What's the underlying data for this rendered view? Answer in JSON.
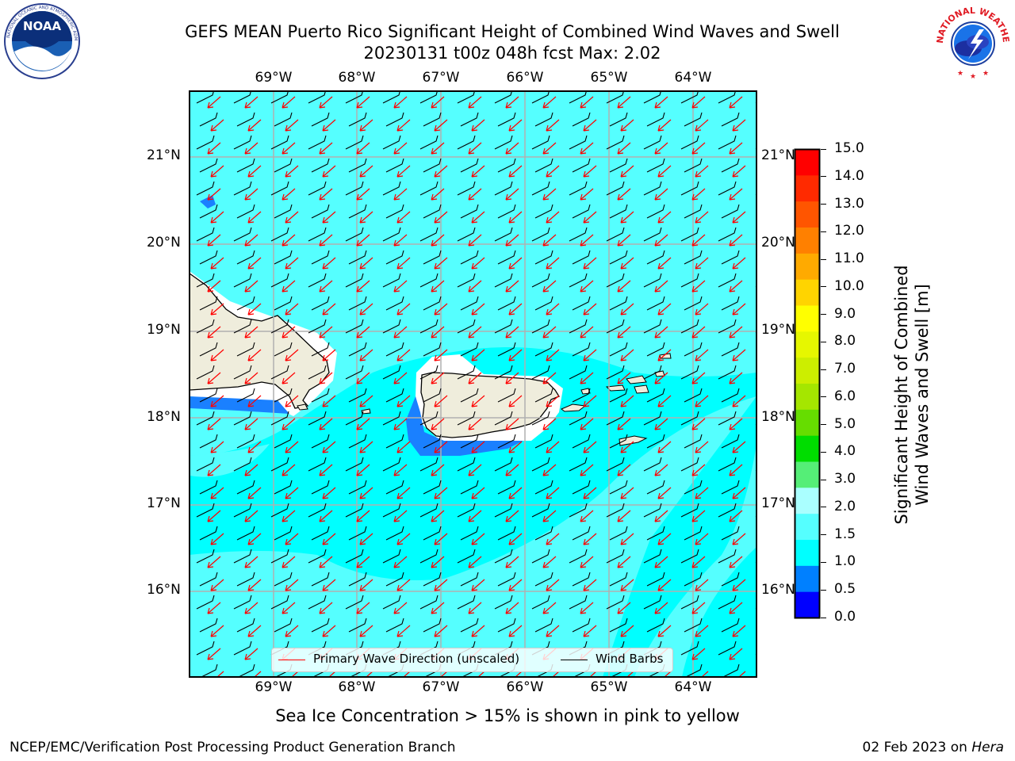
{
  "header": {
    "title_line1": "GEFS MEAN Puerto Rico Significant Height of Combined Wind Waves and Swell",
    "title_line2": "20230131 t00z 048h fcst   Max: 2.02"
  },
  "logos": {
    "left": {
      "icon": "noaa-logo",
      "text": "NOAA"
    },
    "right": {
      "icon": "nws-logo",
      "text": "NATIONAL WEATHER SERVICE"
    }
  },
  "map": {
    "lon_labels": [
      "69°W",
      "68°W",
      "67°W",
      "66°W",
      "65°W",
      "64°W"
    ],
    "lat_labels": [
      "21°N",
      "20°N",
      "19°N",
      "18°N",
      "17°N",
      "16°N"
    ],
    "ocean_color": "#00ffff",
    "land_color": "#efeddc",
    "arrow_color": "#ff0000",
    "barb_color": "#000000",
    "legend": {
      "wave_label": "Primary Wave Direction (unscaled)",
      "barb_label": "Wind Barbs"
    }
  },
  "colorbar": {
    "label_line1": "Significant Height of Combined",
    "label_line2": "Wind Waves and Swell [m]",
    "ticks": [
      "15.0",
      "14.0",
      "13.0",
      "12.0",
      "11.0",
      "10.0",
      "9.0",
      "8.0",
      "7.0",
      "6.0",
      "5.0",
      "4.0",
      "3.0",
      "2.0",
      "1.5",
      "1.0",
      "0.5",
      "0.0"
    ],
    "colors_top_to_bottom": [
      "#ff0000",
      "#ff2a00",
      "#ff5500",
      "#ff8000",
      "#ffaa00",
      "#ffd400",
      "#ffff00",
      "#e6f700",
      "#ccee00",
      "#a5e600",
      "#66dd00",
      "#00dd00",
      "#55ee77",
      "#aaffff",
      "#55ffff",
      "#00ffff",
      "#0080ff",
      "#0000ff"
    ]
  },
  "note": "Sea Ice Concentration > 15% is shown in pink to yellow",
  "footer": {
    "left": "NCEP/EMC/Verification Post Processing Product Generation Branch",
    "date": "02 Feb 2023 on ",
    "machine": "Hera"
  }
}
